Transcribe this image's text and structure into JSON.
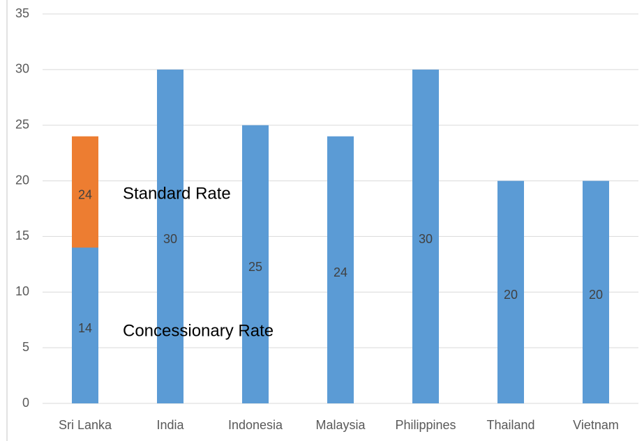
{
  "chart_data": {
    "type": "bar",
    "categories": [
      "Sri Lanka",
      "India",
      "Indonesia",
      "Malaysia",
      "Philippines",
      "Thailand",
      "Vietnam"
    ],
    "series": [
      {
        "color": "#5b9bd5",
        "values": [
          14,
          30,
          25,
          24,
          30,
          20,
          20
        ]
      },
      {
        "color": "#ed7d31",
        "values": [
          24,
          null,
          null,
          null,
          null,
          null,
          null
        ]
      }
    ],
    "annotations": [
      "Standard Rate",
      "Concessionary Rate"
    ],
    "ylim": [
      0,
      35
    ],
    "yticks": [
      0,
      5,
      10,
      15,
      20,
      25,
      30,
      35
    ],
    "grid": true
  }
}
